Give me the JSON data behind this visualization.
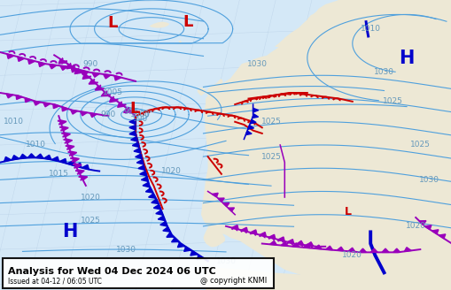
{
  "title_main": "Analysis for Wed 04 Dec 2024 06 UTC",
  "title_sub": "Issued at 04-12 / 06:05 UTC",
  "copyright": "@ copyright KNMI",
  "bg_color": "#d4e8f7",
  "land_color": "#ede8d5",
  "water_color": "#d4e8f7",
  "fig_width": 5.1,
  "fig_height": 3.28,
  "dpi": 100,
  "isobar_color": "#4fa0dd",
  "isobar_lw": 0.8,
  "front_red": "#cc0000",
  "front_blue": "#0000cc",
  "front_purple": "#9900bb",
  "front_lw": 1.4,
  "label_color": "#6699bb",
  "label_fontsize": 6.5,
  "sys_L_color": "#cc0000",
  "sys_H_color": "#0000cc",
  "sys_fontsize": 13
}
